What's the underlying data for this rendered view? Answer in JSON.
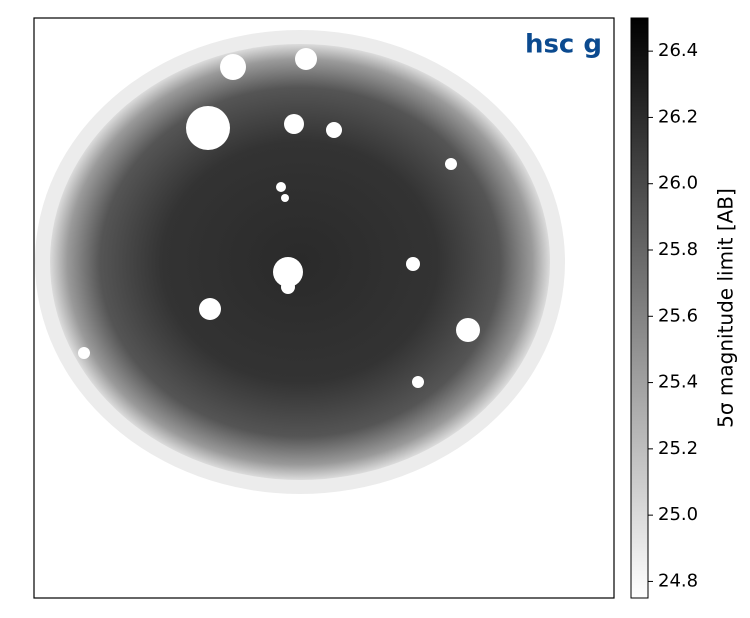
{
  "chart_data": {
    "type": "image",
    "annotation": "hsc g",
    "colorbar_label": "5σ magnitude limit [AB]",
    "colormap": "gray_r",
    "clim": [
      24.75,
      26.5
    ],
    "cticks": [
      24.8,
      {
        "value": 25,
        "label": "25.0"
      },
      25.2,
      25.4,
      25.6,
      25.8,
      {
        "value": 26,
        "label": "26.0"
      },
      26.2,
      26.4
    ]
  }
}
